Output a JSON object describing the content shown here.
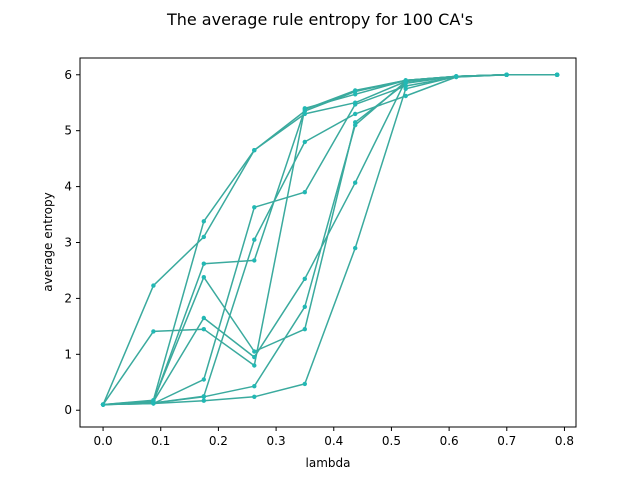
{
  "chart_data": {
    "type": "line",
    "title": "The average rule entropy for 100 CA's",
    "xlabel": "lambda",
    "ylabel": "average entropy",
    "xlim": [
      -0.04,
      0.82
    ],
    "ylim": [
      -0.3,
      6.3
    ],
    "xticks": [
      "0.0",
      "0.1",
      "0.2",
      "0.3",
      "0.4",
      "0.5",
      "0.6",
      "0.7",
      "0.8"
    ],
    "yticks": [
      "0",
      "1",
      "2",
      "3",
      "4",
      "5",
      "6"
    ],
    "grid": false,
    "line_color": "#3aaa9e",
    "marker_color": "#22b8b4",
    "series": [
      {
        "x": [
          0.0,
          0.0872,
          0.1747,
          0.2622,
          0.3497,
          0.4372,
          0.5247,
          0.6122,
          0.6997,
          0.7872
        ],
        "values": [
          0.1,
          2.23,
          3.1,
          4.65,
          5.35,
          5.7,
          5.9,
          5.97,
          6.0,
          6.0
        ]
      },
      {
        "x": [
          0.0,
          0.0872,
          0.1747,
          0.2622,
          0.3497,
          0.4372,
          0.5247,
          0.6122,
          0.6997,
          0.7872
        ],
        "values": [
          0.1,
          0.18,
          3.38,
          4.65,
          5.3,
          5.5,
          5.88,
          5.97,
          6.0,
          6.0
        ]
      },
      {
        "x": [
          0.0,
          0.0872,
          0.1747,
          0.2622,
          0.3497,
          0.4372,
          0.5247,
          0.6122,
          0.6997,
          0.7872
        ],
        "values": [
          0.1,
          1.41,
          1.45,
          0.8,
          5.4,
          5.65,
          5.9,
          5.97,
          6.0,
          6.0
        ]
      },
      {
        "x": [
          0.0,
          0.0872,
          0.1747,
          0.2622,
          0.3497,
          0.4372,
          0.5247,
          0.6122,
          0.6997,
          0.7872
        ],
        "values": [
          0.1,
          0.15,
          2.62,
          2.68,
          5.38,
          5.72,
          5.9,
          5.97,
          6.0,
          6.0
        ]
      },
      {
        "x": [
          0.0,
          0.0872,
          0.1747,
          0.2622,
          0.3497,
          0.4372,
          0.5247,
          0.6122,
          0.6997,
          0.7872
        ],
        "values": [
          0.1,
          0.12,
          0.55,
          3.63,
          3.9,
          5.47,
          5.8,
          5.96,
          6.0,
          6.0
        ]
      },
      {
        "x": [
          0.0,
          0.0872,
          0.1747,
          0.2622,
          0.3497,
          0.4372,
          0.5247,
          0.6122,
          0.6997,
          0.7872
        ],
        "values": [
          0.1,
          0.17,
          2.38,
          1.05,
          1.45,
          5.15,
          5.85,
          5.97,
          6.0,
          6.0
        ]
      },
      {
        "x": [
          0.0,
          0.0872,
          0.1747,
          0.2622,
          0.3497,
          0.4372,
          0.5247,
          0.6122,
          0.6997,
          0.7872
        ],
        "values": [
          0.1,
          0.15,
          1.65,
          0.95,
          2.35,
          4.07,
          5.9,
          5.97,
          6.0,
          6.0
        ]
      },
      {
        "x": [
          0.0,
          0.0872,
          0.1747,
          0.2622,
          0.3497,
          0.4372,
          0.5247,
          0.6122,
          0.6997,
          0.7872
        ],
        "values": [
          0.1,
          0.13,
          0.25,
          3.05,
          4.8,
          5.3,
          5.62,
          5.96,
          6.0,
          6.0
        ]
      },
      {
        "x": [
          0.0,
          0.0872,
          0.1747,
          0.2622,
          0.3497,
          0.4372,
          0.5247,
          0.6122,
          0.6997,
          0.7872
        ],
        "values": [
          0.1,
          0.13,
          0.24,
          0.43,
          1.85,
          5.1,
          5.88,
          5.97,
          6.0,
          6.0
        ]
      },
      {
        "x": [
          0.0,
          0.0872,
          0.1747,
          0.2622,
          0.3497,
          0.4372,
          0.5247,
          0.6122,
          0.6997,
          0.7872
        ],
        "values": [
          0.1,
          0.12,
          0.17,
          0.24,
          0.47,
          2.9,
          5.75,
          5.97,
          6.0,
          6.0
        ]
      }
    ]
  }
}
